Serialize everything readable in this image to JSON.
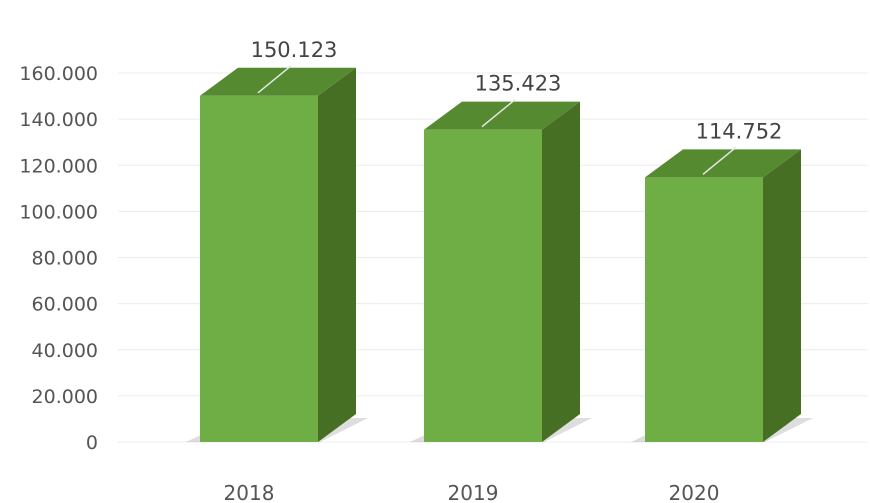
{
  "chart_data": {
    "type": "bar",
    "style": "3d-column",
    "categories": [
      "2018",
      "2019",
      "2020"
    ],
    "values": [
      150123,
      135423,
      114752
    ],
    "value_labels": [
      "150.123",
      "135.423",
      "114.752"
    ],
    "ytick_values": [
      0,
      20000,
      40000,
      60000,
      80000,
      100000,
      120000,
      140000,
      160000
    ],
    "ytick_labels": [
      "0",
      "20.000",
      "40.000",
      "60.000",
      "80.000",
      "100.000",
      "120.000",
      "140.000",
      "160.000"
    ],
    "ylim": [
      0,
      160000
    ],
    "grid": true,
    "title": "",
    "xlabel": "",
    "ylabel": "",
    "colors": {
      "bar_front": "#6fae45",
      "bar_side": "#466f23",
      "bar_top": "#568a30",
      "gridline": "#ececec",
      "text": "#555555"
    }
  }
}
